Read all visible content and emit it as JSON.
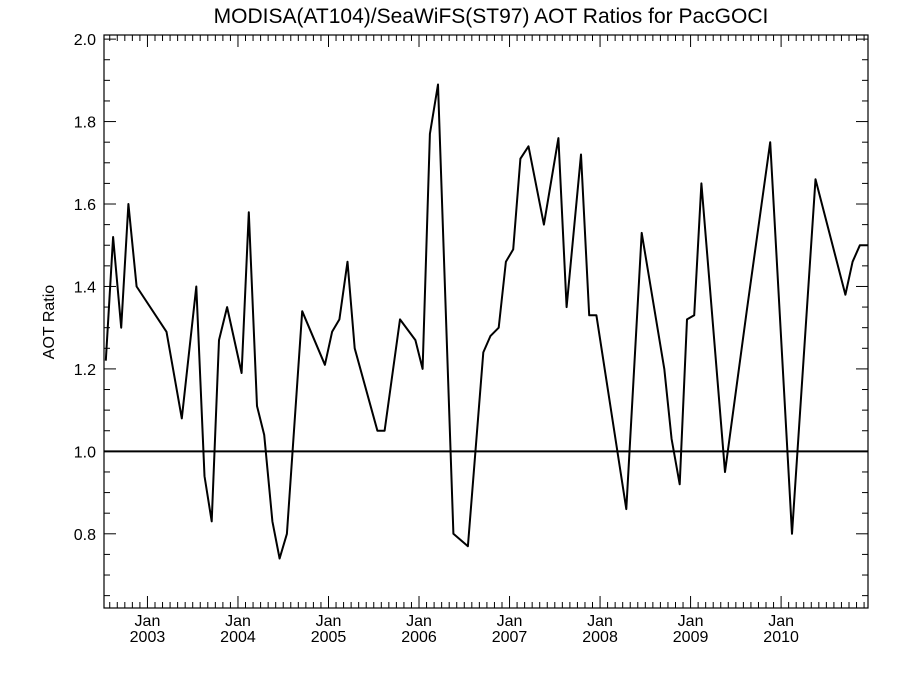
{
  "chart_data": {
    "type": "line",
    "title": "MODISA(AT104)/SeaWiFS(ST97)  AOT Ratios for PacGOCI",
    "xlabel": "",
    "ylabel": "AOT Ratio",
    "xlim": [
      2002.52,
      2010.96
    ],
    "ylim": [
      0.62,
      2.01
    ],
    "yticks": [
      0.8,
      1.0,
      1.2,
      1.4,
      1.6,
      1.8,
      2.0
    ],
    "ytick_labels": [
      "0.8",
      "1.0",
      "1.2",
      "1.4",
      "1.6",
      "1.8",
      "2.0"
    ],
    "y_minor_step": 0.05,
    "x_month_labels": [
      {
        "x": 2003.0,
        "month": "Jan",
        "year": "2003"
      },
      {
        "x": 2004.0,
        "month": "Jan",
        "year": "2004"
      },
      {
        "x": 2005.0,
        "month": "Jan",
        "year": "2005"
      },
      {
        "x": 2006.0,
        "month": "Jan",
        "year": "2006"
      },
      {
        "x": 2007.0,
        "month": "Jan",
        "year": "2007"
      },
      {
        "x": 2008.0,
        "month": "Jan",
        "year": "2008"
      },
      {
        "x": 2009.0,
        "month": "Jan",
        "year": "2009"
      },
      {
        "x": 2010.0,
        "month": "Jan",
        "year": "2010"
      }
    ],
    "reference_line": 1.0,
    "grid": false,
    "series": [
      {
        "x": [
          2002.54,
          2002.62,
          2002.71,
          2002.79,
          2002.88,
          2003.21,
          2003.38,
          2003.54,
          2003.63,
          2003.71,
          2003.79,
          2003.88,
          2004.04,
          2004.12,
          2004.21,
          2004.29,
          2004.38,
          2004.46,
          2004.54,
          2004.71,
          2004.96,
          2005.04,
          2005.12,
          2005.21,
          2005.29,
          2005.54,
          2005.62,
          2005.79,
          2005.96,
          2006.04,
          2006.12,
          2006.21,
          2006.38,
          2006.54,
          2006.71,
          2006.79,
          2006.88,
          2006.96,
          2007.04,
          2007.12,
          2007.21,
          2007.38,
          2007.54,
          2007.63,
          2007.79,
          2007.88,
          2007.96,
          2008.29,
          2008.46,
          2008.71,
          2008.79,
          2008.88,
          2008.96,
          2009.04,
          2009.12,
          2009.38,
          2009.62,
          2009.88,
          2010.12,
          2010.38,
          2010.71,
          2010.79,
          2010.87,
          2010.96
        ],
        "y": [
          1.22,
          1.52,
          1.3,
          1.6,
          1.4,
          1.29,
          1.08,
          1.4,
          0.94,
          0.83,
          1.27,
          1.35,
          1.19,
          1.58,
          1.11,
          1.04,
          0.83,
          0.74,
          0.8,
          1.34,
          1.21,
          1.29,
          1.32,
          1.46,
          1.25,
          1.05,
          1.05,
          1.32,
          1.27,
          1.2,
          1.77,
          1.89,
          0.8,
          0.77,
          1.24,
          1.28,
          1.3,
          1.46,
          1.49,
          1.71,
          1.74,
          1.55,
          1.76,
          1.35,
          1.72,
          1.33,
          1.33,
          0.86,
          1.53,
          1.2,
          1.03,
          0.92,
          1.32,
          1.33,
          1.65,
          0.95,
          1.34,
          1.75,
          0.8,
          1.66,
          1.38,
          1.46,
          1.5,
          1.5
        ]
      }
    ]
  }
}
